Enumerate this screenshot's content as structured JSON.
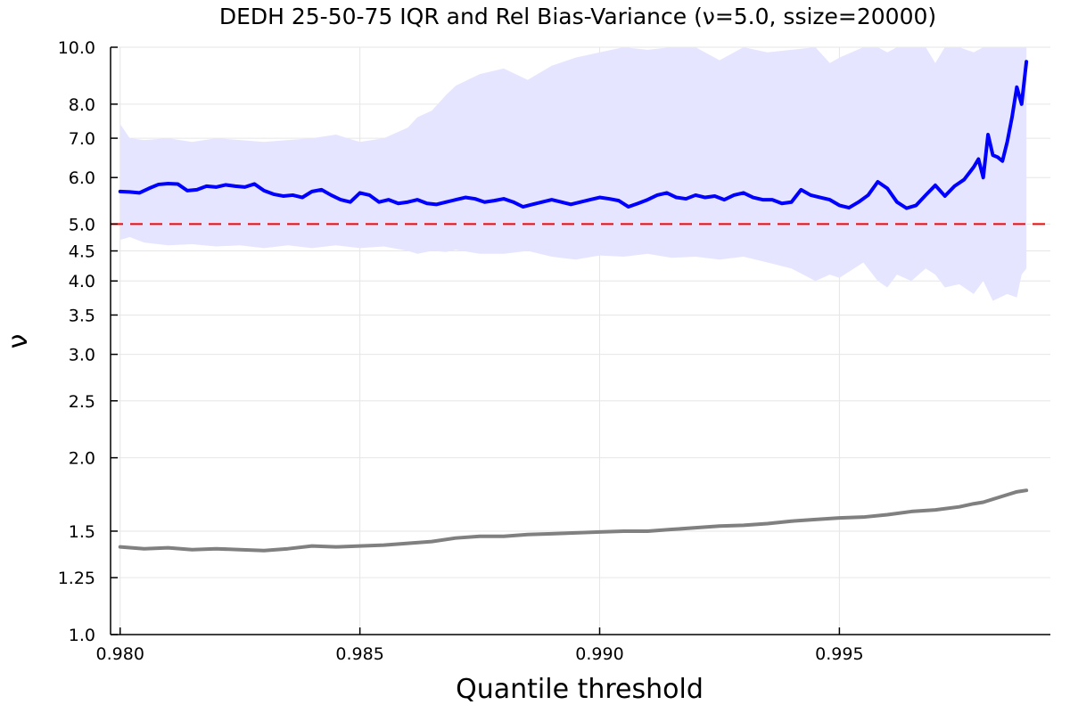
{
  "chart_data": {
    "type": "line",
    "title": "DEDH 25-50-75 IQR and Rel Bias-Variance (ν=5.0, ssize=20000)",
    "xlabel": "Quantile threshold",
    "ylabel": "ν",
    "xlim": [
      0.9798,
      0.9994
    ],
    "ylim": [
      1.0,
      10.0
    ],
    "yscale": "log",
    "xticks": [
      0.98,
      0.985,
      0.99,
      0.995
    ],
    "xtick_labels": [
      "0.980",
      "0.985",
      "0.990",
      "0.995"
    ],
    "yticks": [
      1.0,
      1.25,
      1.5,
      2.0,
      2.5,
      3.0,
      3.5,
      4.0,
      4.5,
      5.0,
      6.0,
      7.0,
      8.0,
      10.0
    ],
    "ytick_labels": [
      "1.0",
      "1.25",
      "1.5",
      "2.0",
      "2.5",
      "3.0",
      "3.5",
      "4.0",
      "4.5",
      "5.0",
      "6.0",
      "7.0",
      "8.0",
      "10.0"
    ],
    "grid": true,
    "legend": "none",
    "reference_line": {
      "y": 5.0,
      "color": "#ff0000",
      "style": "dashed"
    },
    "series": [
      {
        "kind": "band",
        "color": "#e5e5ff",
        "x": [
          0.98,
          0.9802,
          0.9805,
          0.981,
          0.9815,
          0.982,
          0.9825,
          0.983,
          0.9835,
          0.984,
          0.9845,
          0.985,
          0.9855,
          0.986,
          0.9862,
          0.9865,
          0.9868,
          0.987,
          0.9875,
          0.988,
          0.9885,
          0.989,
          0.9895,
          0.99,
          0.9905,
          0.991,
          0.9915,
          0.992,
          0.9925,
          0.993,
          0.9935,
          0.994,
          0.9945,
          0.9948,
          0.995,
          0.9955,
          0.9958,
          0.996,
          0.9962,
          0.9965,
          0.9968,
          0.997,
          0.9972,
          0.9975,
          0.9978,
          0.998,
          0.9982,
          0.9985,
          0.9987,
          0.9988,
          0.9989
        ],
        "upper": [
          7.4,
          7.0,
          6.95,
          7.0,
          6.9,
          7.0,
          6.95,
          6.9,
          6.95,
          7.0,
          7.1,
          6.9,
          7.0,
          7.3,
          7.6,
          7.8,
          8.3,
          8.6,
          9.0,
          9.2,
          8.8,
          9.3,
          9.6,
          9.8,
          10.0,
          9.9,
          10.0,
          10.0,
          9.5,
          10.0,
          9.8,
          9.9,
          10.0,
          9.4,
          9.6,
          10.0,
          10.0,
          9.8,
          10.0,
          10.0,
          10.0,
          9.4,
          10.0,
          10.0,
          9.8,
          10.0,
          10.0,
          10.0,
          10.0,
          10.0,
          10.0
        ],
        "lower": [
          4.7,
          4.75,
          4.65,
          4.6,
          4.62,
          4.58,
          4.6,
          4.55,
          4.6,
          4.55,
          4.6,
          4.55,
          4.58,
          4.5,
          4.45,
          4.5,
          4.48,
          4.52,
          4.45,
          4.45,
          4.5,
          4.4,
          4.35,
          4.42,
          4.4,
          4.45,
          4.38,
          4.4,
          4.35,
          4.4,
          4.3,
          4.2,
          4.0,
          4.1,
          4.05,
          4.3,
          4.0,
          3.9,
          4.1,
          4.0,
          4.2,
          4.1,
          3.9,
          3.95,
          3.8,
          4.0,
          3.7,
          3.8,
          3.75,
          4.1,
          4.2
        ]
      },
      {
        "kind": "line",
        "name": "",
        "color": "#0000ff",
        "x": [
          0.98,
          0.9802,
          0.9804,
          0.9806,
          0.9808,
          0.981,
          0.9812,
          0.9814,
          0.9816,
          0.9818,
          0.982,
          0.9822,
          0.9824,
          0.9826,
          0.9828,
          0.983,
          0.9832,
          0.9834,
          0.9836,
          0.9838,
          0.984,
          0.9842,
          0.9844,
          0.9846,
          0.9848,
          0.985,
          0.9852,
          0.9854,
          0.9856,
          0.9858,
          0.986,
          0.9862,
          0.9864,
          0.9866,
          0.9868,
          0.987,
          0.9872,
          0.9874,
          0.9876,
          0.9878,
          0.988,
          0.9882,
          0.9884,
          0.9886,
          0.9888,
          0.989,
          0.9892,
          0.9894,
          0.9896,
          0.9898,
          0.99,
          0.9902,
          0.9904,
          0.9906,
          0.9908,
          0.991,
          0.9912,
          0.9914,
          0.9916,
          0.9918,
          0.992,
          0.9922,
          0.9924,
          0.9926,
          0.9928,
          0.993,
          0.9932,
          0.9934,
          0.9936,
          0.9938,
          0.994,
          0.9942,
          0.9944,
          0.9946,
          0.9948,
          0.995,
          0.9952,
          0.9954,
          0.9956,
          0.9958,
          0.996,
          0.9962,
          0.9964,
          0.9966,
          0.9968,
          0.997,
          0.9972,
          0.9974,
          0.9976,
          0.9978,
          0.9979,
          0.998,
          0.9981,
          0.9982,
          0.9983,
          0.9984,
          0.9985,
          0.9986,
          0.9987,
          0.9988,
          0.9989
        ],
        "values": [
          5.68,
          5.67,
          5.65,
          5.75,
          5.84,
          5.86,
          5.85,
          5.7,
          5.72,
          5.8,
          5.78,
          5.83,
          5.8,
          5.78,
          5.85,
          5.7,
          5.62,
          5.58,
          5.6,
          5.55,
          5.68,
          5.72,
          5.6,
          5.5,
          5.45,
          5.65,
          5.6,
          5.45,
          5.5,
          5.42,
          5.45,
          5.5,
          5.42,
          5.4,
          5.45,
          5.5,
          5.55,
          5.52,
          5.45,
          5.48,
          5.52,
          5.45,
          5.35,
          5.4,
          5.45,
          5.5,
          5.45,
          5.4,
          5.45,
          5.5,
          5.55,
          5.52,
          5.48,
          5.35,
          5.42,
          5.5,
          5.6,
          5.65,
          5.55,
          5.52,
          5.6,
          5.55,
          5.58,
          5.5,
          5.6,
          5.65,
          5.55,
          5.5,
          5.5,
          5.42,
          5.45,
          5.72,
          5.6,
          5.55,
          5.5,
          5.38,
          5.33,
          5.45,
          5.6,
          5.9,
          5.75,
          5.45,
          5.32,
          5.38,
          5.6,
          5.82,
          5.58,
          5.8,
          5.95,
          6.25,
          6.45,
          6.0,
          7.1,
          6.55,
          6.5,
          6.4,
          6.9,
          7.6,
          8.55,
          8.0,
          9.45
        ]
      },
      {
        "kind": "line",
        "name": "",
        "color": "#808080",
        "x": [
          0.98,
          0.9805,
          0.981,
          0.9815,
          0.982,
          0.9825,
          0.983,
          0.9835,
          0.984,
          0.9845,
          0.985,
          0.9855,
          0.986,
          0.9865,
          0.987,
          0.9875,
          0.988,
          0.9885,
          0.989,
          0.9895,
          0.99,
          0.9905,
          0.991,
          0.9915,
          0.992,
          0.9925,
          0.993,
          0.9935,
          0.994,
          0.9945,
          0.995,
          0.9955,
          0.996,
          0.9965,
          0.997,
          0.9975,
          0.9978,
          0.998,
          0.9982,
          0.9985,
          0.9987,
          0.9989
        ],
        "values": [
          1.41,
          1.4,
          1.405,
          1.395,
          1.4,
          1.395,
          1.39,
          1.4,
          1.415,
          1.41,
          1.415,
          1.42,
          1.43,
          1.44,
          1.46,
          1.47,
          1.47,
          1.48,
          1.485,
          1.49,
          1.495,
          1.5,
          1.5,
          1.51,
          1.52,
          1.53,
          1.535,
          1.545,
          1.56,
          1.57,
          1.58,
          1.585,
          1.6,
          1.62,
          1.63,
          1.65,
          1.67,
          1.68,
          1.7,
          1.73,
          1.75,
          1.76
        ]
      }
    ]
  }
}
